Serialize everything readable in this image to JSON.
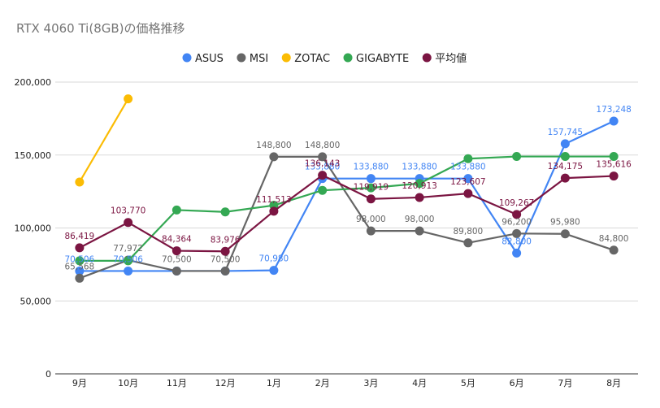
{
  "chart_data": {
    "type": "line",
    "title": "RTX 4060 Ti(8GB)の価格推移",
    "xlabel": "",
    "ylabel": "",
    "categories": [
      "9月",
      "10月",
      "11月",
      "12月",
      "1月",
      "2月",
      "3月",
      "4月",
      "5月",
      "6月",
      "7月",
      "8月"
    ],
    "ylim": [
      0,
      200000
    ],
    "yticks": [
      0,
      50000,
      100000,
      150000,
      200000
    ],
    "ytick_labels": [
      "0",
      "50,000",
      "100,000",
      "150,000",
      "200,000"
    ],
    "grid": true,
    "legend_position": "top",
    "series": [
      {
        "name": "ASUS",
        "color": "#4285f4",
        "values": [
          70506,
          70506,
          70500,
          70500,
          70980,
          133880,
          133880,
          133880,
          133880,
          82800,
          157745,
          173248
        ],
        "labels": [
          "70,506",
          "70,506",
          null,
          null,
          "70,980",
          "133,880",
          "133,880",
          "133,880",
          "133,880",
          "82,800",
          "157,745",
          "173,248"
        ]
      },
      {
        "name": "MSI",
        "color": "#666666",
        "values": [
          65568,
          77972,
          70500,
          70500,
          148800,
          148800,
          98000,
          98000,
          89800,
          96200,
          95980,
          84800
        ],
        "labels": [
          "65,568",
          "77,972",
          "70,500",
          "70,500",
          "148,800",
          "148,800",
          "98,000",
          "98,000",
          "89,800",
          "96,200",
          "95,980",
          "84,800"
        ]
      },
      {
        "name": "ZOTAC",
        "color": "#fbbc04",
        "values": [
          131500,
          188500,
          null,
          null,
          null,
          null,
          null,
          null,
          null,
          null,
          null,
          null
        ],
        "labels": [
          null,
          null,
          null,
          null,
          null,
          null,
          null,
          null,
          null,
          null,
          null,
          null
        ]
      },
      {
        "name": "GIGABYTE",
        "color": "#34a853",
        "values": [
          77500,
          77500,
          112300,
          111000,
          115500,
          125800,
          127500,
          130500,
          147500,
          149000,
          149000,
          149000
        ],
        "labels": [
          null,
          null,
          null,
          null,
          null,
          null,
          null,
          null,
          null,
          null,
          null,
          null
        ]
      },
      {
        "name": "平均値",
        "color": "#7b1542",
        "values": [
          86419,
          103770,
          84364,
          83976,
          111513,
          136143,
          119919,
          120913,
          123607,
          109267,
          134175,
          135616
        ],
        "labels": [
          "86,419",
          "103,770",
          "84,364",
          "83,976",
          "111,513",
          "136,143",
          "119,919",
          "120,913",
          "123,607",
          "109,267",
          "134,175",
          "135,616"
        ]
      }
    ]
  }
}
